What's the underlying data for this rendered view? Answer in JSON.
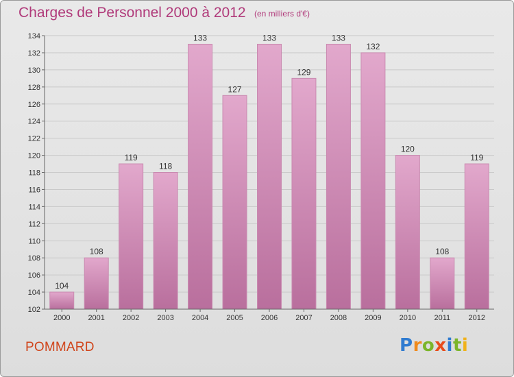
{
  "header": {
    "title": "Charges de Personnel 2000 à 2012",
    "subtitle": "(en milliers d'€)"
  },
  "footer": {
    "place": "POMMARD",
    "logo_letters": [
      {
        "ch": "P",
        "color": "#2f7bd0"
      },
      {
        "ch": "r",
        "color": "#f08a1c"
      },
      {
        "ch": "o",
        "color": "#7bb52a"
      },
      {
        "ch": "x",
        "color": "#e84c1a"
      },
      {
        "ch": "i",
        "color": "#2f7bd0"
      },
      {
        "ch": "t",
        "color": "#7bb52a"
      },
      {
        "ch": "i",
        "color": "#f0b21c"
      }
    ]
  },
  "colors": {
    "bar_top": "#e2a8cc",
    "bar_bottom": "#b96f9d",
    "bar_edge": "#c98ab0",
    "grid": "#c9c9c9",
    "axis": "#666666"
  },
  "chart_data": {
    "type": "bar",
    "title": "Charges de Personnel 2000 à 2012",
    "subtitle": "(en milliers d'€)",
    "xlabel": "",
    "ylabel": "",
    "categories": [
      "2000",
      "2001",
      "2002",
      "2003",
      "2004",
      "2005",
      "2006",
      "2007",
      "2008",
      "2009",
      "2010",
      "2011",
      "2012"
    ],
    "values": [
      104,
      108,
      119,
      118,
      133,
      127,
      133,
      129,
      133,
      132,
      120,
      108,
      119
    ],
    "ylim": [
      102,
      134
    ],
    "yticks": [
      102,
      104,
      106,
      108,
      110,
      112,
      114,
      116,
      118,
      120,
      122,
      124,
      126,
      128,
      130,
      132,
      134
    ],
    "grid": true
  }
}
